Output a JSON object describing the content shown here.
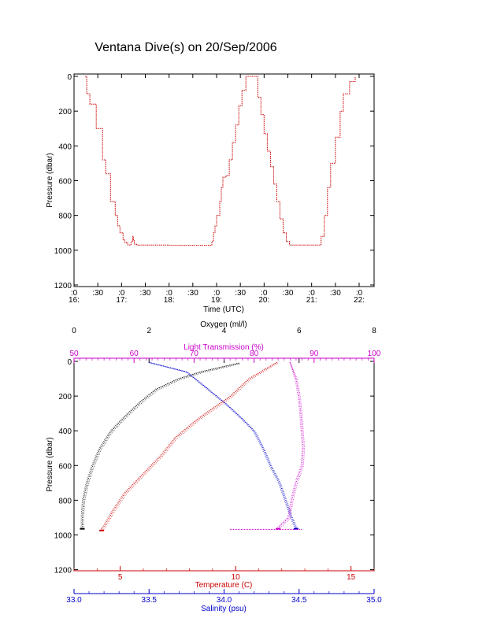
{
  "title": "Ventana Dive(s) on 20/Sep/2006",
  "chart_data": [
    {
      "type": "line",
      "xlabel": "Time (UTC)",
      "ylabel": "Pressure (dbar)",
      "xlim": [
        "16:00",
        "22:20"
      ],
      "ylim": [
        1200,
        0
      ],
      "y_ticks": [
        0,
        200,
        400,
        600,
        800,
        1000,
        1200
      ],
      "x_ticks": [
        {
          "t": 0,
          "top": ":0",
          "bottom": "16:"
        },
        {
          "t": 30,
          "top": ":30",
          "bottom": ""
        },
        {
          "t": 60,
          "top": ":0",
          "bottom": "17:"
        },
        {
          "t": 90,
          "top": ":30",
          "bottom": ""
        },
        {
          "t": 120,
          "top": ":0",
          "bottom": "18:"
        },
        {
          "t": 150,
          "top": ":30",
          "bottom": ""
        },
        {
          "t": 180,
          "top": ":0",
          "bottom": "19:"
        },
        {
          "t": 210,
          "top": ":30",
          "bottom": ""
        },
        {
          "t": 240,
          "top": ":0",
          "bottom": "20:"
        },
        {
          "t": 270,
          "top": ":30",
          "bottom": ""
        },
        {
          "t": 300,
          "top": ":0",
          "bottom": "21:"
        },
        {
          "t": 330,
          "top": ":30",
          "bottom": ""
        },
        {
          "t": 360,
          "top": ":0",
          "bottom": "22:"
        }
      ],
      "series": [
        {
          "color": "#cc0000",
          "x_minutes": [
            14,
            16,
            20,
            28,
            36,
            40,
            46,
            52,
            55,
            58,
            62,
            64,
            66,
            68,
            70,
            72,
            74,
            75,
            76,
            79,
            80,
            84,
            100,
            120,
            140,
            160,
            172,
            174,
            176,
            178,
            180,
            184,
            186,
            188,
            192,
            196,
            200,
            204,
            208,
            212,
            217,
            228,
            232,
            236,
            240,
            244,
            248,
            252,
            256,
            260,
            264,
            268,
            272,
            276,
            279,
            280,
            283,
            300,
            310,
            312,
            316,
            320,
            324,
            330,
            336,
            340,
            348,
            355
          ],
          "pressure": [
            0,
            100,
            160,
            300,
            480,
            560,
            720,
            800,
            860,
            900,
            940,
            955,
            960,
            970,
            970,
            950,
            920,
            945,
            965,
            970,
            970,
            970,
            970,
            972,
            972,
            972,
            972,
            950,
            900,
            860,
            800,
            720,
            640,
            580,
            570,
            480,
            380,
            280,
            170,
            80,
            0,
            0,
            120,
            220,
            330,
            430,
            520,
            620,
            720,
            820,
            900,
            950,
            970,
            970,
            970,
            970,
            970,
            970,
            970,
            920,
            800,
            640,
            500,
            350,
            200,
            100,
            30,
            0
          ]
        }
      ]
    },
    {
      "type": "scatter",
      "ylabel": "Pressure (dbar)",
      "ylim": [
        1200,
        0
      ],
      "y_ticks": [
        0,
        200,
        400,
        600,
        800,
        1000,
        1200
      ],
      "axes": [
        {
          "name": "oxygen",
          "label": "Oxygen (ml/l)",
          "color": "#000000",
          "range": [
            0,
            8
          ],
          "ticks": [
            0,
            2,
            4,
            6,
            8
          ]
        },
        {
          "name": "transmission",
          "label": "Light Transmission (%)",
          "color": "#cc00cc",
          "range": [
            50,
            100
          ],
          "ticks": [
            50,
            60,
            70,
            80,
            90,
            100
          ]
        },
        {
          "name": "temperature",
          "label": "Temperature (C)",
          "color": "#cc0000",
          "range": [
            3,
            16
          ],
          "ticks": [
            5,
            10,
            15
          ]
        },
        {
          "name": "salinity",
          "label": "Salinity (psu)",
          "color": "#0000cc",
          "range": [
            33.0,
            35.0
          ],
          "ticks": [
            "33.0",
            "33.5",
            "34.0",
            "34.5",
            "35.0"
          ]
        }
      ],
      "series": [
        {
          "axis": "oxygen",
          "color": "#000000",
          "points": [
            [
              4.4,
              10
            ],
            [
              4.0,
              30
            ],
            [
              3.4,
              60
            ],
            [
              2.8,
              100
            ],
            [
              2.2,
              160
            ],
            [
              1.8,
              230
            ],
            [
              1.4,
              310
            ],
            [
              1.0,
              400
            ],
            [
              0.7,
              500
            ],
            [
              0.5,
              600
            ],
            [
              0.35,
              700
            ],
            [
              0.25,
              800
            ],
            [
              0.22,
              900
            ],
            [
              0.22,
              960
            ]
          ]
        },
        {
          "axis": "salinity",
          "color": "#0000cc",
          "points": [
            [
              33.5,
              5
            ],
            [
              33.75,
              60
            ],
            [
              33.88,
              150
            ],
            [
              34.02,
              250
            ],
            [
              34.12,
              330
            ],
            [
              34.2,
              400
            ],
            [
              34.26,
              500
            ],
            [
              34.31,
              600
            ],
            [
              34.37,
              700
            ],
            [
              34.41,
              800
            ],
            [
              34.45,
              900
            ],
            [
              34.48,
              960
            ]
          ]
        },
        {
          "axis": "temperature",
          "color": "#cc0000",
          "points": [
            [
              11.8,
              5
            ],
            [
              10.6,
              100
            ],
            [
              9.8,
              200
            ],
            [
              8.4,
              330
            ],
            [
              7.4,
              440
            ],
            [
              6.8,
              540
            ],
            [
              6.0,
              650
            ],
            [
              5.2,
              760
            ],
            [
              4.7,
              860
            ],
            [
              4.4,
              930
            ],
            [
              4.2,
              970
            ]
          ]
        },
        {
          "axis": "transmission",
          "color": "#cc00cc",
          "points": [
            [
              86.0,
              5
            ],
            [
              87.0,
              100
            ],
            [
              87.5,
              200
            ],
            [
              87.8,
              300
            ],
            [
              88.0,
              400
            ],
            [
              88.2,
              500
            ],
            [
              88.0,
              600
            ],
            [
              87.0,
              700
            ],
            [
              86.3,
              800
            ],
            [
              85.8,
              900
            ],
            [
              84.0,
              960
            ]
          ]
        }
      ]
    }
  ]
}
